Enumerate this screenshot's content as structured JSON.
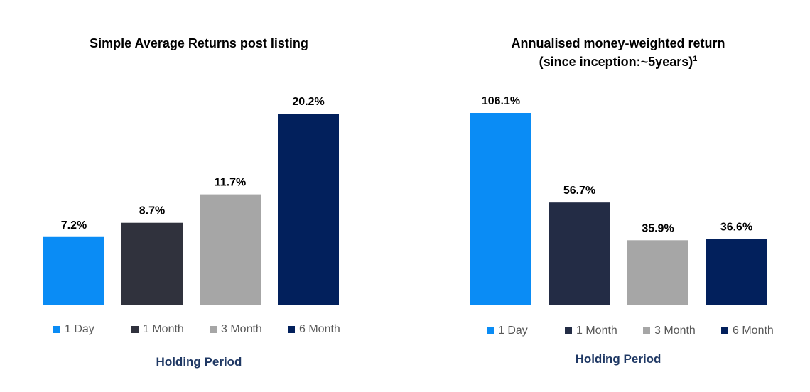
{
  "chart_data": [
    {
      "type": "bar",
      "title": "Simple Average Returns post listing",
      "categories": [
        "1 Day",
        "1 Month",
        "3 Month",
        "6 Month"
      ],
      "values": [
        7.2,
        8.7,
        11.7,
        20.2
      ],
      "data_labels": [
        "7.2%",
        "8.7%",
        "11.7%",
        "20.2%"
      ],
      "xlabel": "Holding Period",
      "ylabel": "",
      "ylim": [
        0,
        20.2
      ],
      "grid": false,
      "legend": "bottom",
      "colors": [
        "#0a8cf5",
        "#30323d",
        "#a6a6a6",
        "#02205c"
      ]
    },
    {
      "type": "bar",
      "title": "Annualised money-weighted return",
      "subtitle": "(since inception:~5years)",
      "subtitle_sup": "1",
      "categories": [
        "1 Day",
        "1 Month",
        "3 Month",
        "6 Month"
      ],
      "values": [
        106.1,
        56.7,
        35.9,
        36.6
      ],
      "data_labels": [
        "106.1%",
        "56.7%",
        "35.9%",
        "36.6%"
      ],
      "xlabel": "Holding Period",
      "ylabel": "",
      "ylim": [
        0,
        106.1
      ],
      "grid": false,
      "legend": "bottom",
      "colors": [
        "#0a8cf5",
        "#232c45",
        "#a6a6a6",
        "#02205c"
      ]
    }
  ]
}
